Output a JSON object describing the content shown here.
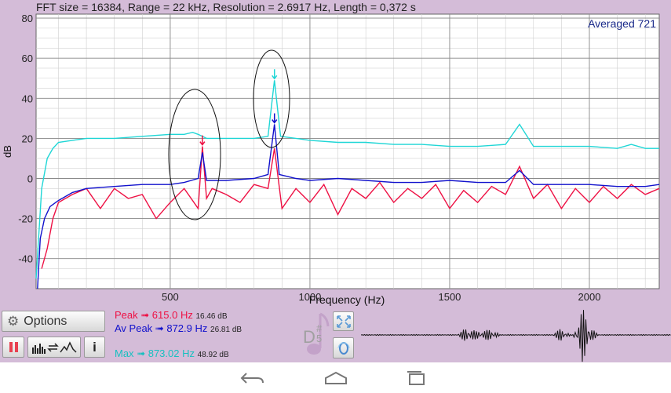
{
  "header": {
    "info_text": "FFT size = 16384, Range = 22 kHz, Resolution = 2.6917 Hz, Length = 0,372 s"
  },
  "chart_data": {
    "type": "line",
    "xlabel": "Frequency (Hz)",
    "ylabel": "dB",
    "xlim": [
      20,
      2250
    ],
    "ylim": [
      -55,
      82
    ],
    "x_ticks": [
      500,
      1000,
      1500,
      2000
    ],
    "x_tick_labels": [
      "500",
      "1000",
      "1500",
      "2000"
    ],
    "y_ticks": [
      80,
      60,
      40,
      20,
      0,
      -20,
      -40
    ],
    "y_tick_labels": [
      "80",
      "60",
      "40",
      "20",
      "0",
      "-20",
      "-40"
    ],
    "grid": true,
    "annotation": "Averaged 721",
    "series": [
      {
        "name": "Max",
        "color": "#1fd6d6",
        "x": [
          20,
          40,
          60,
          80,
          100,
          150,
          200,
          300,
          400,
          500,
          550,
          580,
          600,
          615,
          630,
          700,
          800,
          850,
          873,
          895,
          950,
          1000,
          1100,
          1200,
          1300,
          1400,
          1500,
          1600,
          1700,
          1750,
          1800,
          1900,
          2000,
          2100,
          2150,
          2200,
          2250
        ],
        "y": [
          -50,
          -5,
          10,
          15,
          18,
          19,
          20,
          20,
          21,
          22,
          22,
          23,
          22,
          21,
          20,
          20,
          20,
          21,
          49,
          21,
          20,
          19,
          18,
          18,
          17,
          17,
          16,
          16,
          17,
          27,
          16,
          16,
          16,
          15,
          17,
          15,
          15
        ]
      },
      {
        "name": "Peak",
        "color": "#ee1144",
        "x": [
          40,
          60,
          80,
          100,
          150,
          200,
          250,
          300,
          350,
          400,
          450,
          500,
          550,
          600,
          615,
          630,
          650,
          700,
          750,
          800,
          850,
          873,
          900,
          950,
          1000,
          1050,
          1100,
          1150,
          1200,
          1250,
          1300,
          1350,
          1400,
          1450,
          1500,
          1550,
          1600,
          1650,
          1700,
          1750,
          1800,
          1850,
          1900,
          1950,
          2000,
          2050,
          2100,
          2150,
          2200,
          2250
        ],
        "y": [
          -45,
          -35,
          -20,
          -12,
          -8,
          -5,
          -15,
          -5,
          -10,
          -8,
          -20,
          -12,
          -5,
          -15,
          16,
          -10,
          -5,
          -8,
          -12,
          -3,
          -5,
          15,
          -15,
          -5,
          -12,
          -3,
          -18,
          -5,
          -10,
          -2,
          -12,
          -5,
          -10,
          -3,
          -15,
          -6,
          -12,
          -4,
          -8,
          6,
          -10,
          -3,
          -15,
          -5,
          -12,
          -4,
          -10,
          -3,
          -8,
          -5
        ]
      },
      {
        "name": "Average",
        "color": "#1111cc",
        "x": [
          25,
          35,
          50,
          70,
          100,
          150,
          200,
          300,
          400,
          500,
          550,
          600,
          615,
          630,
          700,
          800,
          850,
          873,
          890,
          950,
          1000,
          1100,
          1200,
          1300,
          1400,
          1500,
          1600,
          1700,
          1750,
          1800,
          1900,
          2000,
          2100,
          2200,
          2250
        ],
        "y": [
          -55,
          -30,
          -20,
          -14,
          -11,
          -7,
          -5,
          -4,
          -3,
          -3,
          -2,
          0,
          13,
          -1,
          -1,
          0,
          2,
          27,
          2,
          0,
          -1,
          0,
          -1,
          -2,
          -2,
          -1,
          -2,
          -2,
          4,
          -3,
          -3,
          -3,
          -4,
          -4,
          -3
        ]
      }
    ]
  },
  "readouts": {
    "peak_label": "Peak",
    "peak_freq": "615.0 Hz",
    "peak_db": "16.46 dB",
    "avpeak_label": "Av Peak",
    "avpeak_freq": "872.9 Hz",
    "avpeak_db": "26.81 dB",
    "max_label": "Max",
    "max_freq": "873.02 Hz",
    "max_db": "48.92 dB",
    "arrow": "➟"
  },
  "controls": {
    "options_label": "Options",
    "info_label": "i",
    "note_letter": "D",
    "note_accidental": "#",
    "note_octave": "5"
  },
  "colors": {
    "background": "#d4bcd8",
    "max": "#1fd6d6",
    "peak": "#ee1144",
    "average": "#1111cc"
  },
  "icons": [
    "gear-icon",
    "pause-icon",
    "display-mode-icon",
    "info-icon",
    "music-note-icon",
    "zoom-fit-icon",
    "reset-zero-icon",
    "back-icon",
    "home-icon",
    "recents-icon"
  ]
}
